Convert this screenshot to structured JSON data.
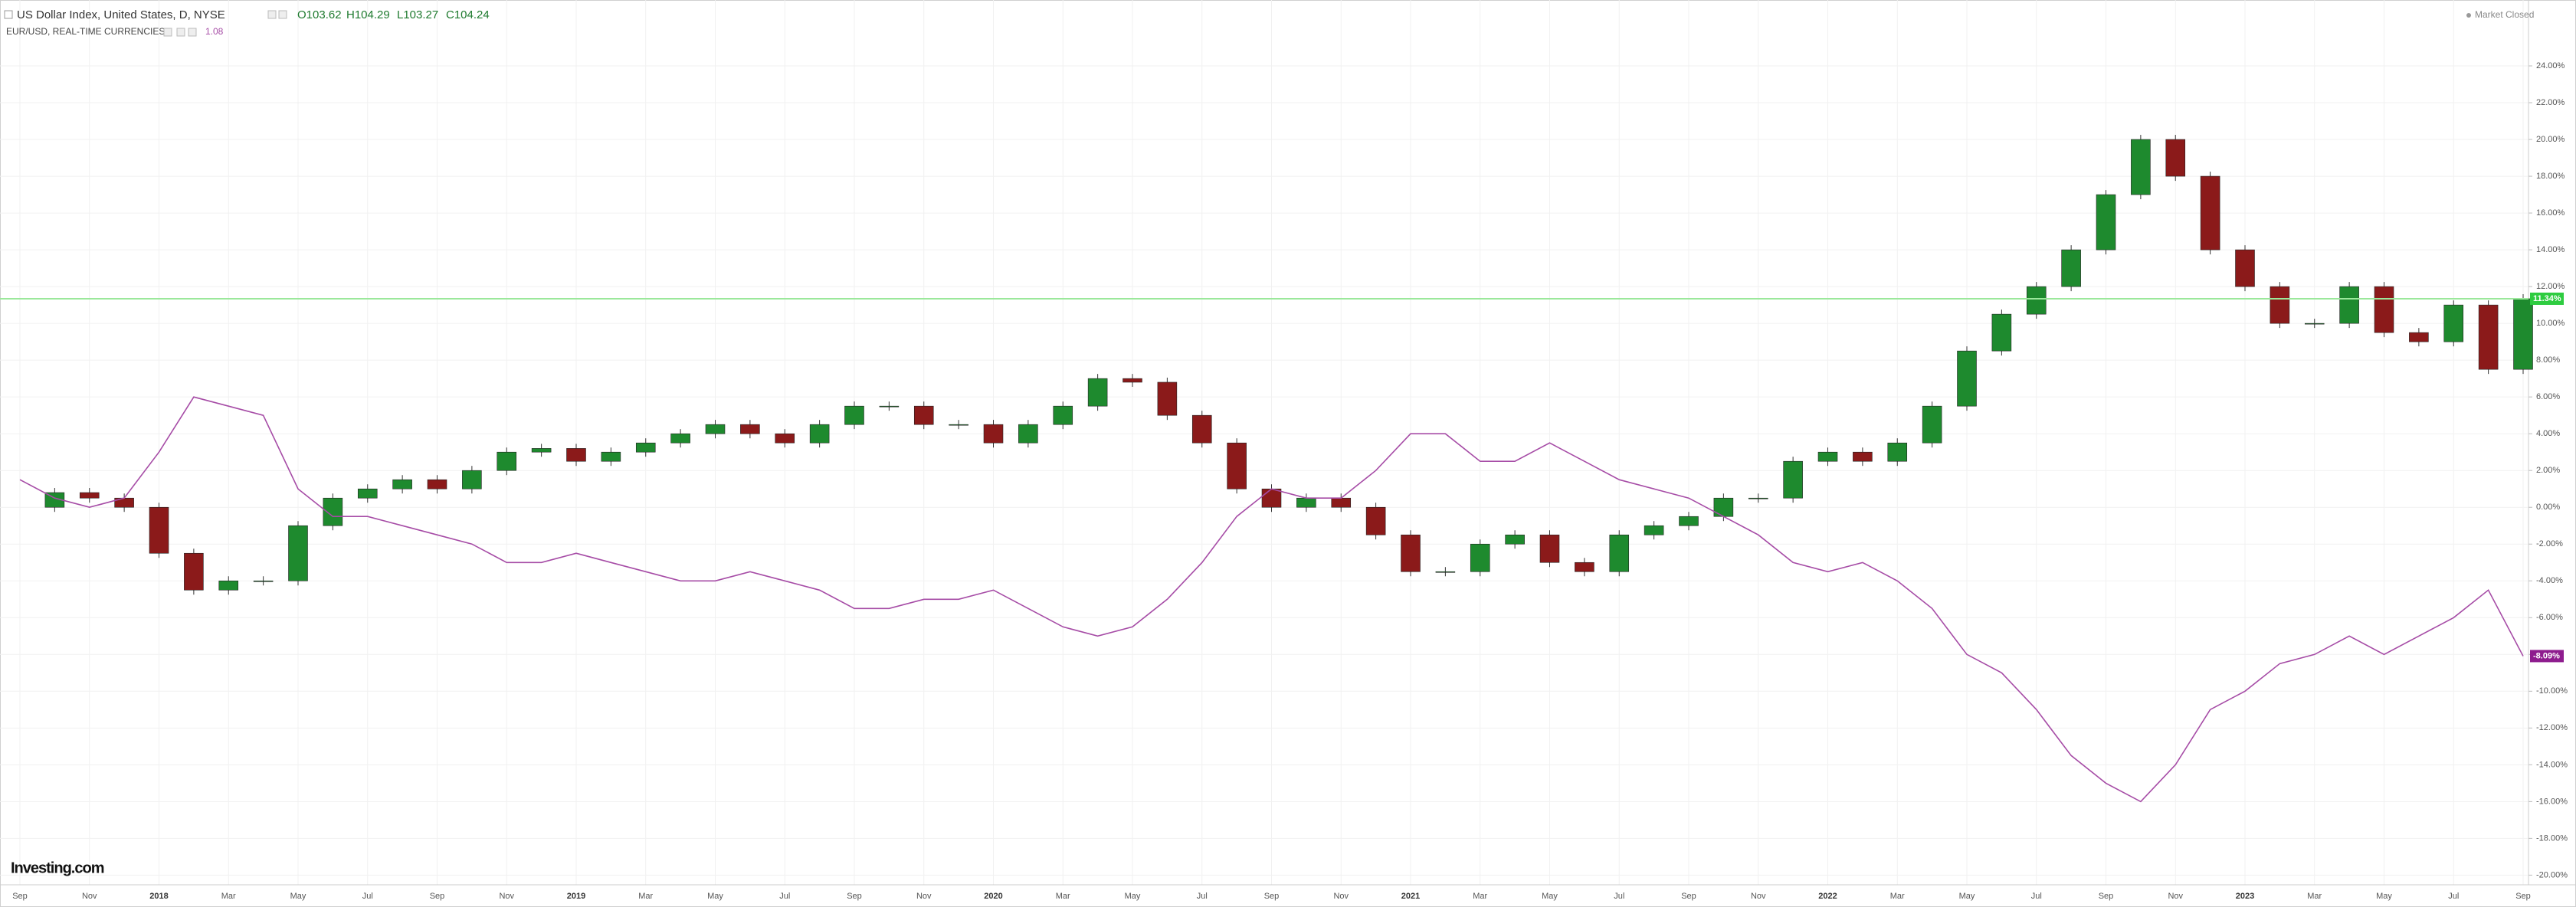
{
  "chart_data": {
    "type": "candle-line",
    "title": "US Dollar Index, United States, D, NYSE",
    "quote": [
      "O103.62",
      "H104.29",
      "L103.27",
      "C104.24"
    ],
    "overlay_quote": "1.08",
    "status": "Market Closed",
    "brand": "Investing.com",
    "categories": [
      "Sep",
      null,
      "Nov",
      null,
      "2018",
      null,
      "Mar",
      null,
      "May",
      null,
      "Jul",
      null,
      "Sep",
      null,
      "Nov",
      null,
      "2019",
      null,
      "Mar",
      null,
      "May",
      null,
      "Jul",
      null,
      "Sep",
      null,
      "Nov",
      null,
      "2020",
      null,
      "Mar",
      null,
      "May",
      null,
      "Jul",
      null,
      "Sep",
      null,
      "Nov",
      null,
      "2021",
      null,
      "Mar",
      null,
      "May",
      null,
      "Jul",
      null,
      "Sep",
      null,
      "Nov",
      null,
      "2022",
      null,
      "Mar",
      null,
      "May",
      null,
      "Jul",
      null,
      "Sep",
      null,
      "Nov",
      null,
      "2023",
      null,
      "Mar",
      null,
      "May",
      null,
      "Jul",
      null,
      "Sep"
    ],
    "series": [
      {
        "name": "US Dollar Index, United States, D, NYSE",
        "style": "candle",
        "up_color": "#1e8a2e",
        "down_color": "#8b1a1a",
        "color": "#2ecc40",
        "last_label": {
          "value": 11.34,
          "label": "11.34%"
        },
        "values": [
          0,
          0.8,
          0.5,
          0,
          -2.5,
          -4.5,
          -4,
          -4,
          -1,
          0.5,
          1,
          1.5,
          1,
          2,
          3,
          3.2,
          2.5,
          3,
          3.5,
          4,
          4.5,
          4,
          3.5,
          4.5,
          5.5,
          5.5,
          4.5,
          4.5,
          3.5,
          4.5,
          5.5,
          7,
          6.8,
          5,
          3.5,
          1,
          0,
          0.5,
          0,
          -1.5,
          -3.5,
          -3.5,
          -2,
          -1.5,
          -3,
          -3.5,
          -1.5,
          -1,
          -0.5,
          0.5,
          0.5,
          2.5,
          3,
          2.5,
          3.5,
          5.5,
          8.5,
          10.5,
          12,
          14,
          17,
          20,
          18,
          14,
          12,
          10,
          10,
          12,
          9.5,
          9,
          11,
          7.5,
          11.34
        ]
      },
      {
        "name": "EUR/USD, REAL-TIME CURRENCIES",
        "style": "line",
        "color": "#a64ca6",
        "badge_color": "#8e1c8e",
        "last_label": {
          "value": -8.09,
          "label": "-8.09%"
        },
        "values": [
          1.5,
          0.5,
          0,
          0.5,
          3,
          6,
          5.5,
          5,
          1,
          -0.5,
          -0.5,
          -1,
          -1.5,
          -2,
          -3,
          -3,
          -2.5,
          -3,
          -3.5,
          -4,
          -4,
          -3.5,
          -4,
          -4.5,
          -5.5,
          -5.5,
          -5,
          -5,
          -4.5,
          -5.5,
          -6.5,
          -7,
          -6.5,
          -5,
          -3,
          -0.5,
          1,
          0.5,
          0.5,
          2,
          4,
          4,
          2.5,
          2.5,
          3.5,
          2.5,
          1.5,
          1,
          0.5,
          -0.5,
          -1.5,
          -3,
          -3.5,
          -3,
          -4,
          -5.5,
          -8,
          -9,
          -11,
          -13.5,
          -15,
          -16,
          -14,
          -11,
          -10,
          -8.5,
          -8,
          -7,
          -8,
          -7,
          -6,
          -4.5,
          -8.09
        ]
      }
    ],
    "ylim": [
      -20.4,
      26
    ],
    "yticks": [
      {
        "value": -20,
        "label": "-20.00%"
      },
      {
        "value": -18,
        "label": "-18.00%"
      },
      {
        "value": -16,
        "label": "-16.00%"
      },
      {
        "value": -14,
        "label": "-14.00%"
      },
      {
        "value": -12,
        "label": "-12.00%"
      },
      {
        "value": -10,
        "label": "-10.00%"
      },
      {
        "value": -8,
        "label": "-8.00%"
      },
      {
        "value": -6,
        "label": "-6.00%"
      },
      {
        "value": -4,
        "label": "-4.00%"
      },
      {
        "value": -2,
        "label": "-2.00%"
      },
      {
        "value": 0,
        "label": "0.00%"
      },
      {
        "value": 2,
        "label": "2.00%"
      },
      {
        "value": 4,
        "label": "4.00%"
      },
      {
        "value": 6,
        "label": "6.00%"
      },
      {
        "value": 8,
        "label": "8.00%"
      },
      {
        "value": 10,
        "label": "10.00%"
      },
      {
        "value": 12,
        "label": "12.00%"
      },
      {
        "value": 14,
        "label": "14.00%"
      },
      {
        "value": 16,
        "label": "16.00%"
      },
      {
        "value": 18,
        "label": "18.00%"
      },
      {
        "value": 20,
        "label": "20.00%"
      },
      {
        "value": 22,
        "label": "22.00%"
      },
      {
        "value": 24,
        "label": "24.00%"
      }
    ],
    "grid": true
  }
}
